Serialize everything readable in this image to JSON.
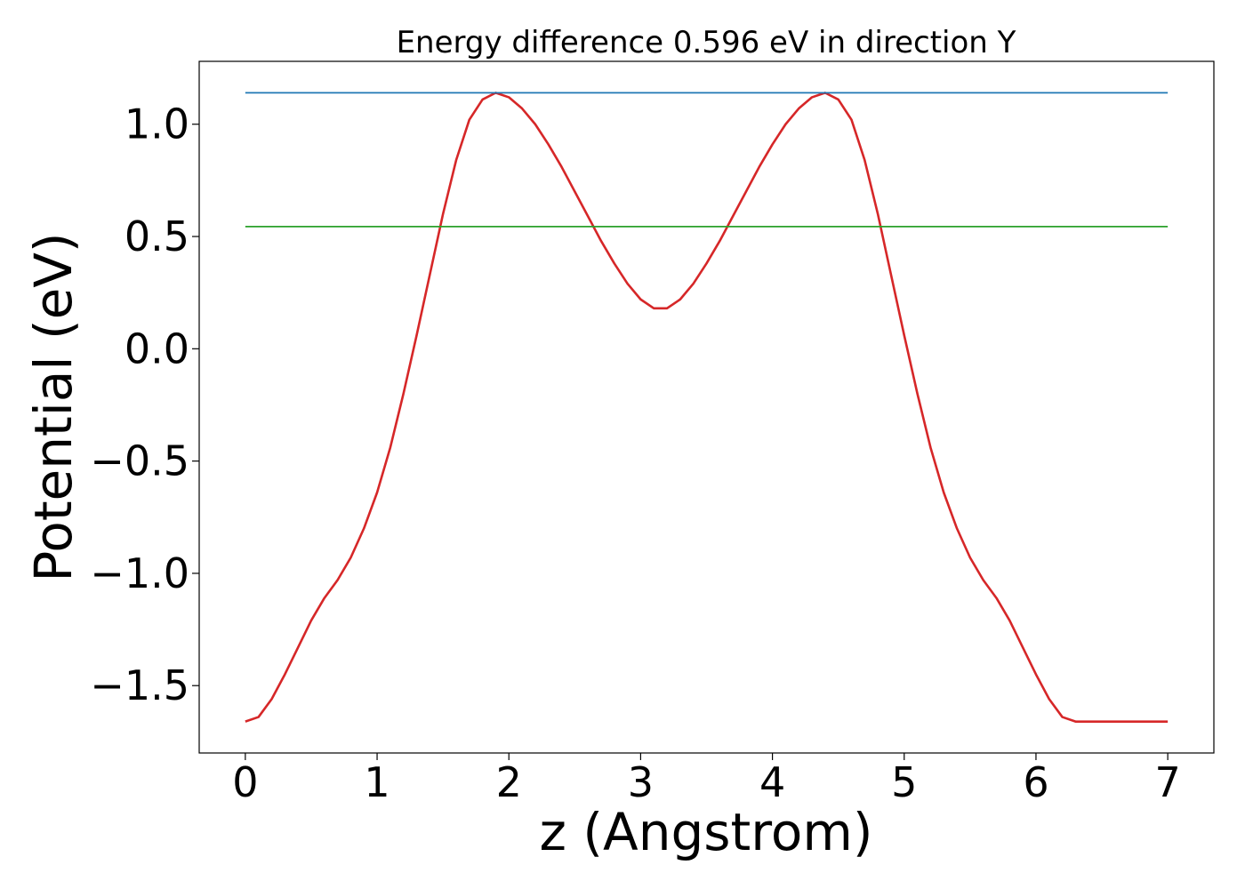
{
  "chart_data": {
    "type": "line",
    "title": "Energy difference 0.596 eV in direction Y",
    "xlabel": "z (Angstrom)",
    "ylabel": "Potential (eV)",
    "xlim": [
      -0.35,
      7.35
    ],
    "ylim": [
      -1.8,
      1.28
    ],
    "xticks": [
      0,
      1,
      2,
      3,
      4,
      5,
      6,
      7
    ],
    "xtick_labels": [
      "0",
      "1",
      "2",
      "3",
      "4",
      "5",
      "6",
      "7"
    ],
    "yticks": [
      -1.5,
      -1.0,
      -0.5,
      0.0,
      0.5,
      1.0
    ],
    "ytick_labels": [
      "−1.5",
      "−1.0",
      "−0.5",
      "0.0",
      "0.5",
      "1.0"
    ],
    "grid": false,
    "series": [
      {
        "color": "#d62728",
        "x": [
          0.0,
          0.1,
          0.2,
          0.3,
          0.4,
          0.5,
          0.6,
          0.7,
          0.8,
          0.9,
          1.0,
          1.1,
          1.2,
          1.3,
          1.4,
          1.5,
          1.6,
          1.7,
          1.8,
          1.9,
          2.0,
          2.1,
          2.2,
          2.3,
          2.4,
          2.5,
          2.6,
          2.7,
          2.8,
          2.9,
          3.0,
          3.1,
          3.2,
          3.3,
          3.4,
          3.5,
          3.6,
          3.7,
          3.8,
          3.9,
          4.0,
          4.1,
          4.2,
          4.3,
          4.4,
          4.5,
          4.6,
          4.7,
          4.8,
          4.9,
          5.0,
          5.1,
          5.2,
          5.3,
          5.4,
          5.5,
          5.6,
          5.7,
          5.8,
          5.9,
          6.0,
          6.1,
          6.2,
          6.3,
          6.4,
          6.5,
          6.6,
          6.7,
          6.8,
          6.9,
          7.0
        ],
        "y": [
          -1.66,
          -1.64,
          -1.56,
          -1.45,
          -1.33,
          -1.21,
          -1.11,
          -1.03,
          -0.93,
          -0.8,
          -0.64,
          -0.44,
          -0.2,
          0.06,
          0.33,
          0.6,
          0.84,
          1.02,
          1.11,
          1.14,
          1.12,
          1.07,
          1.0,
          0.91,
          0.81,
          0.7,
          0.59,
          0.48,
          0.38,
          0.29,
          0.22,
          0.18,
          0.18,
          0.22,
          0.29,
          0.38,
          0.48,
          0.59,
          0.7,
          0.81,
          0.91,
          1.0,
          1.07,
          1.12,
          1.14,
          1.11,
          1.02,
          0.84,
          0.6,
          0.33,
          0.06,
          -0.2,
          -0.44,
          -0.64,
          -0.8,
          -0.93,
          -1.03,
          -1.11,
          -1.21,
          -1.33,
          -1.45,
          -1.56,
          -1.64,
          -1.66,
          -1.66,
          -1.66,
          -1.66,
          -1.66,
          -1.66,
          -1.66,
          -1.66
        ]
      },
      {
        "color": "#1f77b4",
        "x": [
          0.0,
          7.0
        ],
        "y": [
          1.14,
          1.14
        ]
      },
      {
        "color": "#2ca02c",
        "x": [
          0.0,
          7.0
        ],
        "y": [
          0.544,
          0.544
        ]
      }
    ]
  }
}
